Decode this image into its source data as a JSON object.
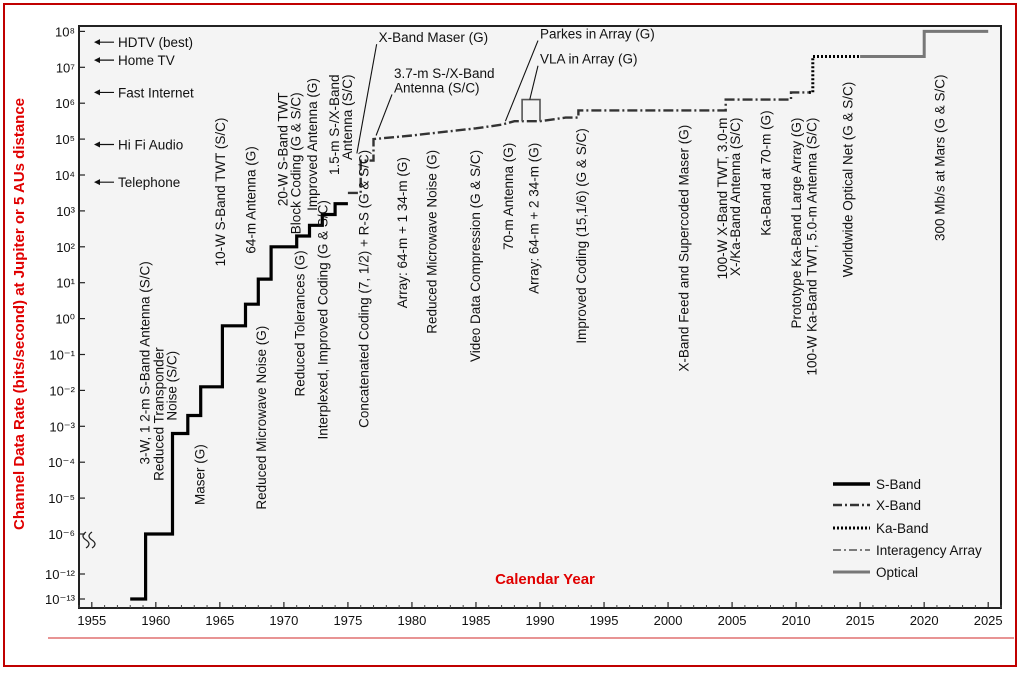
{
  "chart_data": {
    "type": "line",
    "xlabel": "Calendar Year",
    "ylabel": "Channel Data Rate (bits/second) at Jupiter or 5 AUs distance",
    "xlim": [
      1954,
      2026
    ],
    "x_ticks": [
      1955,
      1960,
      1965,
      1970,
      1975,
      1980,
      1985,
      1990,
      1995,
      2000,
      2005,
      2010,
      2015,
      2020,
      2025
    ],
    "y_ticks": [
      {
        "v": -13,
        "label": "10⁻¹³"
      },
      {
        "v": -12,
        "label": "10⁻¹²"
      },
      {
        "v": -6,
        "label": "10⁻⁶"
      },
      {
        "v": -5,
        "label": "10⁻⁵"
      },
      {
        "v": -4,
        "label": "10⁻⁴"
      },
      {
        "v": -3,
        "label": "10⁻³"
      },
      {
        "v": -2,
        "label": "10⁻²"
      },
      {
        "v": -1,
        "label": "10⁻¹"
      },
      {
        "v": 0,
        "label": "10⁰"
      },
      {
        "v": 1,
        "label": "10¹"
      },
      {
        "v": 2,
        "label": "10²"
      },
      {
        "v": 3,
        "label": "10³"
      },
      {
        "v": 4,
        "label": "10⁴"
      },
      {
        "v": 5,
        "label": "10⁵"
      },
      {
        "v": 6,
        "label": "10⁶"
      },
      {
        "v": 7,
        "label": "10⁷"
      },
      {
        "v": 8,
        "label": "10⁸"
      }
    ],
    "y_axis_break": "between 10⁻¹² and 10⁻⁶",
    "series": [
      {
        "name": "S-Band",
        "style": "solid-thick",
        "points": [
          [
            1958,
            -13
          ],
          [
            1959.2,
            -13
          ],
          [
            1959.2,
            -6
          ],
          [
            1961.3,
            -6
          ],
          [
            1961.3,
            -3.2
          ],
          [
            1962.5,
            -3.2
          ],
          [
            1962.5,
            -2.7
          ],
          [
            1963.5,
            -2.7
          ],
          [
            1963.5,
            -1.9
          ],
          [
            1965.2,
            -1.9
          ],
          [
            1965.2,
            -0.2
          ],
          [
            1967,
            -0.2
          ],
          [
            1967,
            0.4
          ],
          [
            1968,
            0.4
          ],
          [
            1968,
            1.1
          ],
          [
            1969,
            1.1
          ],
          [
            1969,
            2
          ],
          [
            1971,
            2
          ],
          [
            1971,
            2.3
          ],
          [
            1972,
            2.3
          ],
          [
            1972,
            2.6
          ],
          [
            1973,
            2.6
          ],
          [
            1973,
            2.9
          ],
          [
            1974,
            2.9
          ],
          [
            1974,
            3.2
          ],
          [
            1975,
            3.2
          ]
        ]
      },
      {
        "name": "X-Band",
        "style": "dash-dot",
        "points": [
          [
            1975,
            3.5
          ],
          [
            1976,
            3.5
          ],
          [
            1976,
            4.4
          ],
          [
            1977,
            4.4
          ],
          [
            1977,
            5
          ],
          [
            1980,
            5.1
          ],
          [
            1985,
            5.3
          ],
          [
            1987,
            5.4
          ],
          [
            1988,
            5.5
          ],
          [
            1990,
            5.5
          ],
          [
            1992,
            5.6
          ],
          [
            1993,
            5.6
          ],
          [
            1993,
            5.8
          ],
          [
            2004.5,
            5.8
          ],
          [
            2004.5,
            6.1
          ],
          [
            2009.6,
            6.1
          ],
          [
            2009.6,
            6.3
          ],
          [
            2011,
            6.3
          ]
        ]
      },
      {
        "name": "Ka-Band",
        "style": "dotted",
        "points": [
          [
            2011,
            6.3
          ],
          [
            2011.3,
            6.3
          ],
          [
            2011.3,
            7.3
          ],
          [
            2018,
            7.3
          ]
        ]
      },
      {
        "name": "Interagency Array",
        "style": "dash-dot-thin",
        "points": [
          [
            1988.6,
            5.5
          ],
          [
            1988.6,
            6.1
          ],
          [
            1990,
            6.1
          ],
          [
            1990,
            5.5
          ]
        ]
      },
      {
        "name": "Optical",
        "style": "solid-gray",
        "points": [
          [
            2015,
            7.3
          ],
          [
            2020,
            7.3
          ],
          [
            2020,
            8
          ],
          [
            2025,
            8
          ]
        ]
      }
    ],
    "reference_levels": [
      {
        "label": "HDTV (best)",
        "v": 7.7
      },
      {
        "label": "Home TV",
        "v": 7.2
      },
      {
        "label": "Fast Internet",
        "v": 6.3
      },
      {
        "label": "Hi Fi Audio",
        "v": 4.85
      },
      {
        "label": "Telephone",
        "v": 3.8
      }
    ],
    "annotations": [
      {
        "text": "3-W, 1 2-m S-Band Antenna (S/C)",
        "x": 1959.5,
        "y_top": 1.6
      },
      {
        "text": "Reduced Transponder",
        "x": 1960.6,
        "y_top": -0.8
      },
      {
        "text": "Noise (S/C)",
        "x": 1961.6,
        "y_top": -0.9
      },
      {
        "text": "Maser (G)",
        "x": 1963.8,
        "y_top": -3.5
      },
      {
        "text": "10-W S-Band TWT (S/C)",
        "x": 1965.4,
        "y_top": 5.6
      },
      {
        "text": "Reduced Microwave Noise (G)",
        "x": 1968.6,
        "y_top": -0.2
      },
      {
        "text": "64-m Antenna (G)",
        "x": 1967.8,
        "y_top": 4.8
      },
      {
        "text": "20-W S-Band TWT",
        "x": 1970.3,
        "y_top": 6.3
      },
      {
        "text": "Block Coding (G & S/C)",
        "x": 1971.3,
        "y_top": 6.3
      },
      {
        "text": "Reduced Tolerances (G)",
        "x": 1971.6,
        "y_top": 1.9
      },
      {
        "text": "Interplexed, Improved Coding (G & S/C)",
        "x": 1973.4,
        "y_top": 3.3
      },
      {
        "text": "Improved Antenna (G)",
        "x": 1972.6,
        "y_top": 6.7
      },
      {
        "text": "1.5-m S-/X-Band",
        "x": 1974.3,
        "y_top": 6.8
      },
      {
        "text": "Antenna (S/C)",
        "x": 1975.3,
        "y_top": 6.8
      },
      {
        "text": "Concatenated Coding (7, 1/2) + R-S (G & S/C)",
        "x": 1976.6,
        "y_top": 4.7
      },
      {
        "text": "Array: 64-m + 1 34-m (G)",
        "x": 1979.6,
        "y_top": 4.5
      },
      {
        "text": "Reduced Microwave Noise (G)",
        "x": 1981.9,
        "y_top": 4.7
      },
      {
        "text": "Video Data Compression (G & S/C)",
        "x": 1985.3,
        "y_top": 4.7
      },
      {
        "text": "70-m Antenna (G)",
        "x": 1987.9,
        "y_top": 4.9
      },
      {
        "text": "Array: 64-m + 2 34-m (G)",
        "x": 1989.9,
        "y_top": 4.9
      },
      {
        "text": "Improved Coding (15,1/6) (G & S/C)",
        "x": 1993.6,
        "y_top": 5.3
      },
      {
        "text": "X-Band Feed and Supercoded Maser (G)",
        "x": 2001.6,
        "y_top": 5.4
      },
      {
        "text": "100-W X-Band TWT, 3.0-m",
        "x": 2004.6,
        "y_top": 5.6
      },
      {
        "text": "X-/Ka-Band Antenna (S/C)",
        "x": 2005.6,
        "y_top": 5.6
      },
      {
        "text": "Ka-Band at 70-m (G)",
        "x": 2008.0,
        "y_top": 5.8
      },
      {
        "text": "Prototype Ka-Band Large Array (G)",
        "x": 2010.4,
        "y_top": 5.6
      },
      {
        "text": "100-W Ka-Band TWT, 5.0-m Antenna (S/C)",
        "x": 2011.6,
        "y_top": 5.6
      },
      {
        "text": "Worldwide Optical Net (G & S/C)",
        "x": 2014.4,
        "y_top": 6.6
      },
      {
        "text": "300 Mb/s at Mars (G & S/C)",
        "x": 2021.6,
        "y_top": 6.8
      }
    ],
    "top_labels": [
      {
        "text": "X-Band Maser (G)",
        "x": 1977.4,
        "y": 7.7,
        "arrow_to": [
          1975.7,
          4.6
        ]
      },
      {
        "text": "3.7-m S-/X-Band",
        "x": 1978.6,
        "y": 6.7
      },
      {
        "text": "Antenna (S/C)",
        "x": 1978.6,
        "y": 6.3,
        "arrow_to": [
          1977.2,
          5.1
        ]
      },
      {
        "text": "Parkes in Array (G)",
        "x": 1990.0,
        "y": 7.8,
        "arrow_to": [
          1987.3,
          5.5
        ]
      },
      {
        "text": "VLA in Array (G)",
        "x": 1990.0,
        "y": 7.1,
        "arrow_to": [
          1989.2,
          6.1
        ]
      }
    ],
    "legend": {
      "placement": "bottom-right"
    }
  }
}
